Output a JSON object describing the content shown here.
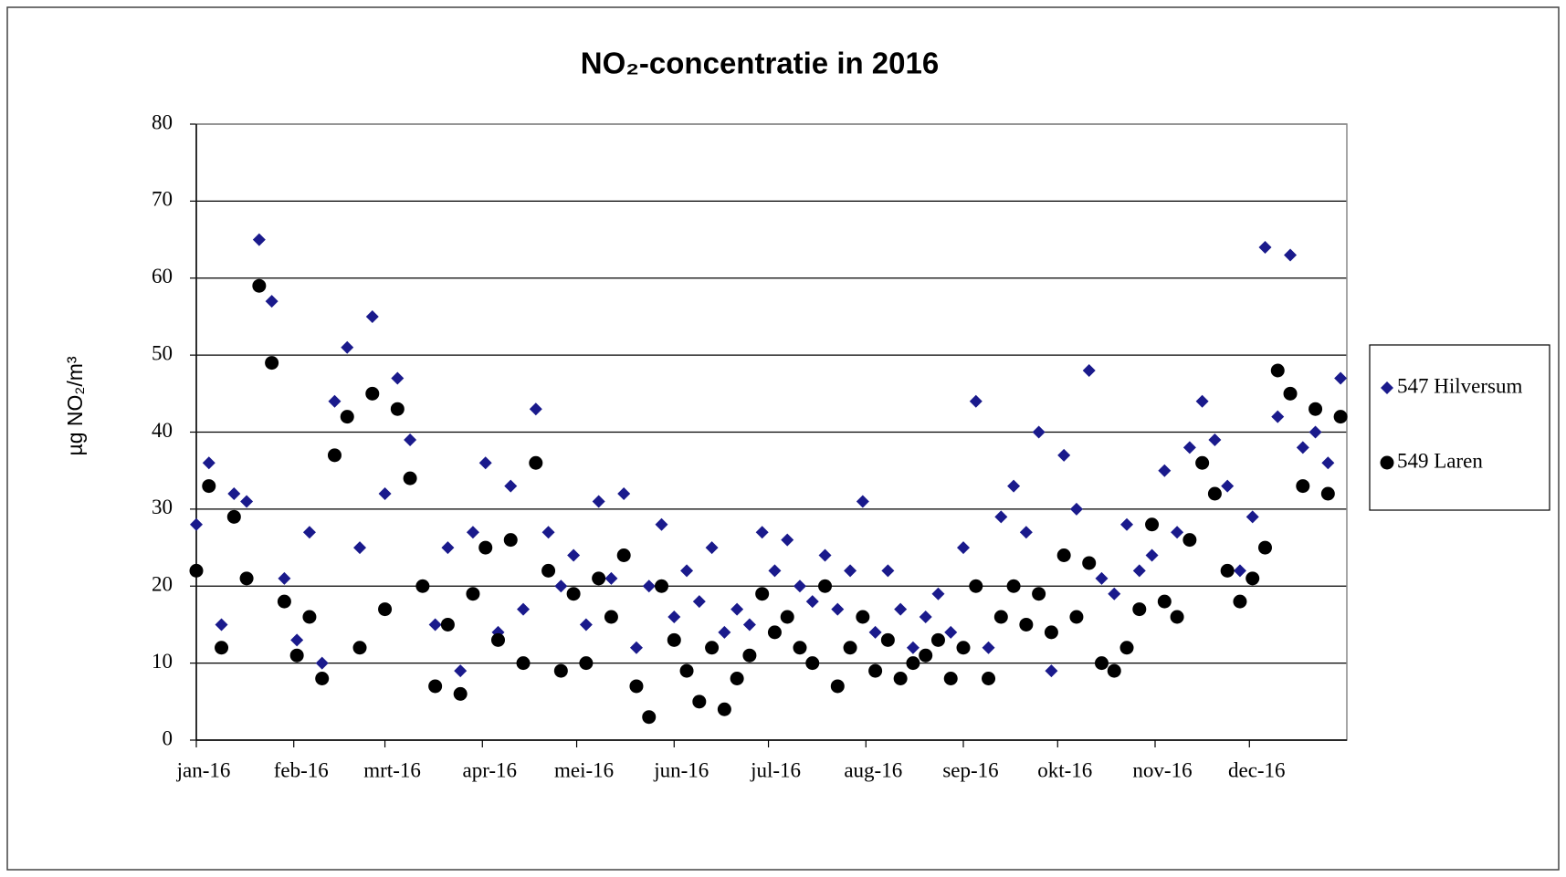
{
  "chart_data": {
    "type": "scatter",
    "title": "NO₂-concentratie in 2016",
    "y_label": "µg NO₂/m³",
    "x": [
      0,
      4,
      8,
      12,
      16,
      20,
      24,
      28,
      32,
      36,
      40,
      44,
      48,
      52,
      56,
      60,
      64,
      68,
      72,
      76,
      80,
      84,
      88,
      92,
      96,
      100,
      104,
      108,
      112,
      116,
      120,
      124,
      128,
      132,
      136,
      140,
      144,
      148,
      152,
      156,
      160,
      164,
      168,
      172,
      176,
      180,
      184,
      188,
      192,
      196,
      200,
      204,
      208,
      212,
      216,
      220,
      224,
      228,
      232,
      236,
      240,
      244,
      248,
      252,
      256,
      260,
      264,
      268,
      272,
      276,
      280,
      284,
      288,
      292,
      296,
      300,
      304,
      308,
      312,
      316,
      320,
      324,
      328,
      332,
      336,
      340,
      344,
      348,
      352,
      356,
      360,
      364
    ],
    "series": [
      {
        "name": "547 Hilversum",
        "color": "#1a1a8c",
        "marker": "diamond",
        "values": [
          28,
          36,
          15,
          32,
          31,
          65,
          57,
          21,
          13,
          27,
          10,
          44,
          51,
          25,
          55,
          32,
          47,
          39,
          20,
          15,
          25,
          9,
          27,
          36,
          14,
          33,
          17,
          43,
          27,
          20,
          24,
          15,
          31,
          21,
          32,
          12,
          20,
          28,
          16,
          22,
          18,
          25,
          14,
          17,
          15,
          27,
          22,
          26,
          20,
          18,
          24,
          17,
          22,
          31,
          14,
          22,
          17,
          12,
          16,
          19,
          14,
          25,
          44,
          12,
          29,
          33,
          27,
          40,
          9,
          37,
          30,
          48,
          21,
          19,
          28,
          22,
          24,
          35,
          27,
          38,
          44,
          39,
          33,
          22,
          29,
          64,
          42,
          63,
          38,
          40,
          36,
          47
        ]
      },
      {
        "name": "549 Laren",
        "color": "#000000",
        "marker": "circle",
        "values": [
          22,
          33,
          12,
          29,
          21,
          59,
          49,
          18,
          11,
          16,
          8,
          37,
          42,
          12,
          45,
          17,
          43,
          34,
          20,
          7,
          15,
          6,
          19,
          25,
          13,
          26,
          10,
          36,
          22,
          9,
          19,
          10,
          21,
          16,
          24,
          7,
          3,
          20,
          13,
          9,
          5,
          12,
          4,
          8,
          11,
          19,
          14,
          16,
          12,
          10,
          20,
          7,
          12,
          16,
          9,
          13,
          8,
          10,
          11,
          13,
          8,
          12,
          20,
          8,
          16,
          20,
          15,
          19,
          14,
          24,
          16,
          23,
          10,
          9,
          12,
          17,
          28,
          18,
          16,
          26,
          36,
          32,
          22,
          18,
          21,
          25,
          48,
          45,
          33,
          43,
          32,
          42
        ]
      }
    ],
    "xlim": [
      0,
      366
    ],
    "xticks": [
      {
        "value": 0,
        "label": "jan-16"
      },
      {
        "value": 31,
        "label": "feb-16"
      },
      {
        "value": 60,
        "label": "mrt-16"
      },
      {
        "value": 91,
        "label": "apr-16"
      },
      {
        "value": 121,
        "label": "mei-16"
      },
      {
        "value": 152,
        "label": "jun-16"
      },
      {
        "value": 182,
        "label": "jul-16"
      },
      {
        "value": 213,
        "label": "aug-16"
      },
      {
        "value": 244,
        "label": "sep-16"
      },
      {
        "value": 274,
        "label": "okt-16"
      },
      {
        "value": 305,
        "label": "nov-16"
      },
      {
        "value": 335,
        "label": "dec-16"
      }
    ],
    "ylim": [
      0,
      80
    ],
    "yticks": [
      0,
      10,
      20,
      30,
      40,
      50,
      60,
      70,
      80
    ],
    "grid": true,
    "legend": "right"
  }
}
